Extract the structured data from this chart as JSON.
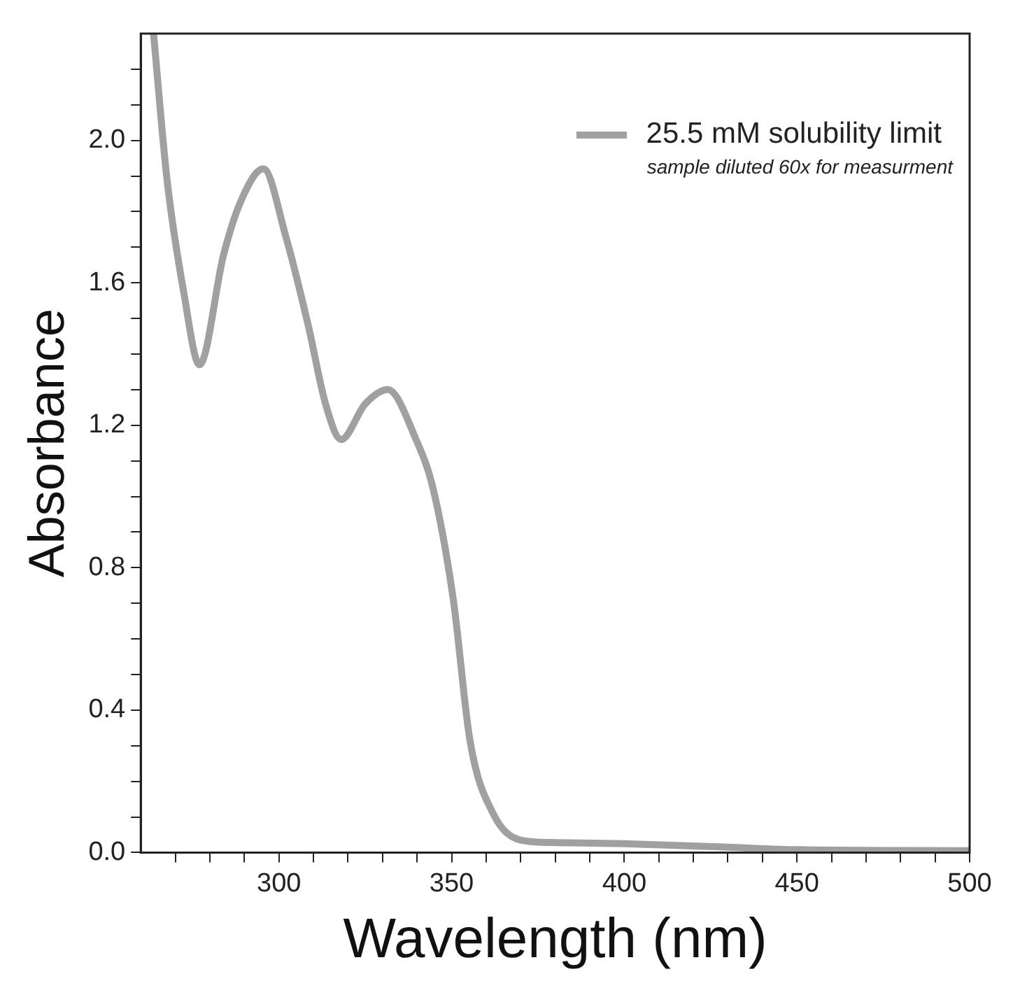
{
  "chart_data": {
    "type": "line",
    "xlabel": "Wavelength (nm)",
    "ylabel": "Absorbance",
    "annotations": [
      "sample diluted 60x for measurment"
    ],
    "xlim": [
      260,
      500
    ],
    "xticks": [
      {
        "value": 270,
        "label": null
      },
      {
        "value": 280,
        "label": null
      },
      {
        "value": 290,
        "label": null
      },
      300,
      {
        "value": 310,
        "label": null
      },
      {
        "value": 320,
        "label": null
      },
      {
        "value": 330,
        "label": null
      },
      {
        "value": 340,
        "label": null
      },
      350,
      {
        "value": 360,
        "label": null
      },
      {
        "value": 370,
        "label": null
      },
      {
        "value": 380,
        "label": null
      },
      {
        "value": 390,
        "label": null
      },
      400,
      {
        "value": 410,
        "label": null
      },
      {
        "value": 420,
        "label": null
      },
      {
        "value": 430,
        "label": null
      },
      {
        "value": 440,
        "label": null
      },
      450,
      {
        "value": 460,
        "label": null
      },
      {
        "value": 470,
        "label": null
      },
      {
        "value": 480,
        "label": null
      },
      {
        "value": 490,
        "label": null
      },
      500
    ],
    "ylim": [
      0,
      2.3
    ],
    "yticks": [
      {
        "value": 0,
        "label": "0.0"
      },
      {
        "value": 0.1,
        "label": null
      },
      {
        "value": 0.2,
        "label": null
      },
      {
        "value": 0.3,
        "label": null
      },
      {
        "value": 0.4,
        "label": "0.4"
      },
      {
        "value": 0.5,
        "label": null
      },
      {
        "value": 0.6,
        "label": null
      },
      {
        "value": 0.7,
        "label": null
      },
      {
        "value": 0.8,
        "label": "0.8"
      },
      {
        "value": 0.9,
        "label": null
      },
      {
        "value": 1.0,
        "label": null
      },
      {
        "value": 1.1,
        "label": null
      },
      {
        "value": 1.2,
        "label": "1.2"
      },
      {
        "value": 1.3,
        "label": null
      },
      {
        "value": 1.4,
        "label": null
      },
      {
        "value": 1.5,
        "label": null
      },
      {
        "value": 1.6,
        "label": "1.6"
      },
      {
        "value": 1.7,
        "label": null
      },
      {
        "value": 1.8,
        "label": null
      },
      {
        "value": 1.9,
        "label": null
      },
      {
        "value": 2.0,
        "label": "2.0"
      },
      {
        "value": 2.1,
        "label": null
      },
      {
        "value": 2.2,
        "label": null
      }
    ],
    "grid": false,
    "legend": "top right",
    "marker": "none",
    "line_style": "solid",
    "series": [
      {
        "name": "25.5 mM solubility limit",
        "color": "#a0a0a0",
        "x": [
          263.7,
          267.6,
          272.5,
          277,
          284,
          289,
          295.5,
          302,
          308.5,
          313.5,
          318,
          325,
          331.5,
          339.7,
          344.7,
          350.5,
          355.4,
          362,
          370,
          380,
          400,
          430,
          450,
          500
        ],
        "values": [
          2.3,
          1.89,
          1.57,
          1.37,
          1.68,
          1.83,
          1.92,
          1.73,
          1.48,
          1.26,
          1.16,
          1.26,
          1.3,
          1.16,
          1.02,
          0.71,
          0.31,
          0.11,
          0.035,
          0.028,
          0.025,
          0.015,
          0.008,
          0.005
        ]
      }
    ]
  }
}
